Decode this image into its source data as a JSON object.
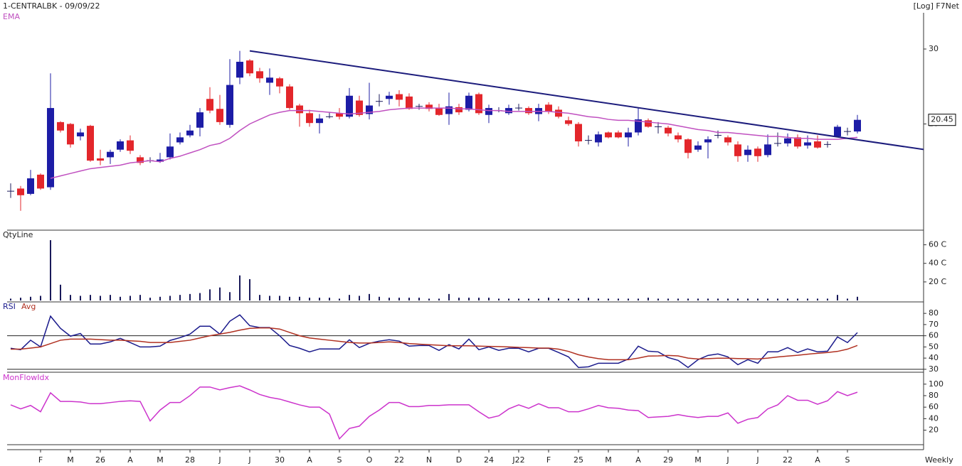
{
  "chart_data": [
    {
      "type": "candlestick",
      "title": "1-CENTRALBK - 09/09/22",
      "scale_label": "[Log] F7Net",
      "log": true,
      "ylim": [
        11.3,
        36.5
      ],
      "yticks": [
        20,
        30
      ],
      "up_color": "#1c1ca6",
      "down_color": "#e3262b",
      "open": [
        13.9,
        14.1,
        13.7,
        15.2,
        14.2,
        20.2,
        20.0,
        18.7,
        19.8,
        16.6,
        16.7,
        17.4,
        18.3,
        16.7,
        16.4,
        16.3,
        16.7,
        18.1,
        18.8,
        19.6,
        22.9,
        21.7,
        19.9,
        25.7,
        28.2,
        26.6,
        25.0,
        25.6,
        24.5,
        22.1,
        21.2,
        20.1,
        20.8,
        21.2,
        20.8,
        22.7,
        21.1,
        22.6,
        22.9,
        23.5,
        23.2,
        22.0,
        22.2,
        21.8,
        21.1,
        21.9,
        21.6,
        23.5,
        21.0,
        21.5,
        21.2,
        21.8,
        21.8,
        21.1,
        22.2,
        21.6,
        20.4,
        20.0,
        18.3,
        18.1,
        19.1,
        19.1,
        18.6,
        19.1,
        20.4,
        19.7,
        19.6,
        18.8,
        18.4,
        17.4,
        18.1,
        18.8,
        18.6,
        17.9,
        16.9,
        17.5,
        16.9,
        18.0,
        18.0,
        18.6,
        17.8,
        18.2,
        17.9,
        18.7,
        19.2,
        19.2
      ],
      "high": [
        14.5,
        14.3,
        15.6,
        15.3,
        26.3,
        20.3,
        20.1,
        19.5,
        19.9,
        17.4,
        17.4,
        18.4,
        18.8,
        16.9,
        16.7,
        17.1,
        19.0,
        19.1,
        19.9,
        21.8,
        24.4,
        23.4,
        28.4,
        29.7,
        28.4,
        27.1,
        27.0,
        25.8,
        24.8,
        22.3,
        21.6,
        21.1,
        21.3,
        21.8,
        24.3,
        23.3,
        25.0,
        23.5,
        23.8,
        24.0,
        23.6,
        22.3,
        22.5,
        22.3,
        23.7,
        22.3,
        23.7,
        23.7,
        22.2,
        21.9,
        22.2,
        22.3,
        22.0,
        22.3,
        22.5,
        22.0,
        20.8,
        20.2,
        18.8,
        19.2,
        19.2,
        19.3,
        19.6,
        21.8,
        20.6,
        20.2,
        19.8,
        19.1,
        18.5,
        18.2,
        18.7,
        19.3,
        18.8,
        18.2,
        17.8,
        17.7,
        18.9,
        19.1,
        19.0,
        18.9,
        18.8,
        18.8,
        18.2,
        19.9,
        19.6,
        21.0
      ],
      "low": [
        13.4,
        12.5,
        13.6,
        14.0,
        14.0,
        19.1,
        17.6,
        18.3,
        16.3,
        16.0,
        16.1,
        17.2,
        17.0,
        16.0,
        16.2,
        16.2,
        16.5,
        17.9,
        18.6,
        18.7,
        21.2,
        19.9,
        19.6,
        24.8,
        25.9,
        25.0,
        23.4,
        23.6,
        21.6,
        19.7,
        19.7,
        19.0,
        20.6,
        20.5,
        20.6,
        20.8,
        20.5,
        22.0,
        22.2,
        22.0,
        21.6,
        21.6,
        21.4,
        20.9,
        19.9,
        21.0,
        21.4,
        21.0,
        20.1,
        21.3,
        21.0,
        21.5,
        21.0,
        20.3,
        21.1,
        20.6,
        19.8,
        17.7,
        17.9,
        17.7,
        18.5,
        18.5,
        17.7,
        18.8,
        19.6,
        19.0,
        18.7,
        18.1,
        16.6,
        17.2,
        16.6,
        18.5,
        17.8,
        16.3,
        16.3,
        16.3,
        16.7,
        17.7,
        17.7,
        17.5,
        17.5,
        17.5,
        17.6,
        18.6,
        18.8,
        19.0
      ],
      "close": [
        13.9,
        13.6,
        14.9,
        14.1,
        21.8,
        19.3,
        17.9,
        19.1,
        16.4,
        16.4,
        17.2,
        18.2,
        17.3,
        16.2,
        16.4,
        16.5,
        17.7,
        18.6,
        19.3,
        21.3,
        21.5,
        20.2,
        24.7,
        28.0,
        26.3,
        25.6,
        25.7,
        24.5,
        21.8,
        21.2,
        20.1,
        20.6,
        20.8,
        20.8,
        23.3,
        21.0,
        22.1,
        22.6,
        23.3,
        22.8,
        21.7,
        22.0,
        21.7,
        21.0,
        22.0,
        21.3,
        23.3,
        21.2,
        21.8,
        21.5,
        21.8,
        21.8,
        21.2,
        21.8,
        21.4,
        20.8,
        20.0,
        18.2,
        18.3,
        18.9,
        18.6,
        18.6,
        19.1,
        20.5,
        19.7,
        19.7,
        19.0,
        18.4,
        17.1,
        17.8,
        18.4,
        18.8,
        18.1,
        16.8,
        17.4,
        16.8,
        17.9,
        18.0,
        18.5,
        17.7,
        18.1,
        17.6,
        17.9,
        19.7,
        19.2,
        20.45
      ],
      "series": [
        {
          "name": "EMA",
          "color": "#c050c0",
          "values": [
            null,
            null,
            null,
            null,
            14.9,
            15.1,
            15.3,
            15.5,
            15.7,
            15.8,
            15.9,
            16.0,
            16.2,
            16.3,
            16.4,
            16.3,
            16.6,
            16.8,
            17.1,
            17.4,
            17.8,
            18.0,
            18.5,
            19.3,
            20.0,
            20.5,
            21.0,
            21.3,
            21.5,
            21.5,
            21.5,
            21.4,
            21.3,
            21.2,
            21.1,
            21.2,
            21.3,
            21.4,
            21.6,
            21.7,
            21.8,
            21.8,
            21.8,
            21.8,
            21.8,
            21.7,
            21.7,
            21.6,
            21.5,
            21.5,
            21.4,
            21.4,
            21.4,
            21.4,
            21.4,
            21.3,
            21.2,
            21.0,
            20.8,
            20.7,
            20.5,
            20.4,
            20.4,
            20.3,
            20.2,
            20.1,
            20.0,
            19.8,
            19.6,
            19.4,
            19.3,
            19.1,
            19.1,
            19.0,
            18.9,
            18.8,
            18.7,
            18.7,
            18.6,
            18.5,
            18.5,
            18.4,
            18.4,
            18.4,
            18.5,
            18.6
          ]
        }
      ],
      "trendline": {
        "x": [
          24,
          91.8
        ],
        "y": [
          29.7,
          17.4
        ],
        "color": "#1c1c7c"
      },
      "last_value": 20.45
    },
    {
      "type": "bar",
      "title": "QtyLine",
      "color": "#1a1a5a",
      "ylim": [
        0,
        75
      ],
      "yticks": [
        {
          "value": 20,
          "label": "20 C"
        },
        {
          "value": 40,
          "label": "40 C"
        },
        {
          "value": 60,
          "label": "60 C"
        }
      ],
      "values": [
        2,
        3,
        4,
        5,
        65,
        17,
        6,
        5,
        6,
        5,
        6,
        4,
        5,
        6,
        3,
        4,
        5,
        6,
        7,
        8,
        12,
        14,
        9,
        27,
        23,
        6,
        5,
        5,
        4,
        4,
        3,
        3,
        3,
        2,
        6,
        5,
        7,
        4,
        3,
        3,
        3,
        3,
        2,
        2,
        7,
        3,
        3,
        3,
        3,
        2,
        2,
        2,
        2,
        2,
        3,
        2,
        2,
        2,
        3,
        2,
        2,
        2,
        2,
        2,
        3,
        2,
        2,
        2,
        2,
        2,
        2,
        2,
        2,
        2,
        2,
        2,
        2,
        2,
        2,
        2,
        2,
        2,
        2,
        6,
        2,
        4
      ]
    },
    {
      "type": "line",
      "ylim": [
        28,
        89
      ],
      "yticks": [
        30,
        40,
        50,
        60,
        70,
        80
      ],
      "levels": [
        60,
        30
      ],
      "series": [
        {
          "name": "RSI",
          "color": "#1a1a8c",
          "values": [
            48.8,
            47.5,
            56,
            50,
            77.5,
            66.6,
            59.6,
            62,
            52.6,
            52.6,
            54.5,
            57.7,
            53.9,
            50,
            50,
            50.7,
            55.8,
            58.3,
            61.5,
            68.5,
            68.5,
            61.5,
            73,
            78.7,
            69,
            67.3,
            67.3,
            60,
            51.3,
            48.8,
            45.6,
            48.2,
            48.2,
            48.2,
            56.4,
            49.4,
            53.2,
            55.2,
            56.4,
            55.2,
            50.7,
            51.3,
            51.3,
            46.9,
            52,
            48.2,
            57,
            47.5,
            50,
            46.9,
            48.8,
            48.8,
            45.6,
            48.8,
            48.8,
            45,
            41.1,
            31.6,
            32.2,
            35.4,
            35.4,
            35.4,
            39.2,
            50.7,
            46.2,
            45.6,
            40.5,
            38,
            31.6,
            38.6,
            42.4,
            43.7,
            41.1,
            34.1,
            38.6,
            35.4,
            45.6,
            45.6,
            49.4,
            45,
            48.2,
            45.6,
            46.2,
            59,
            53.9,
            62.8
          ]
        },
        {
          "name": "Avg",
          "color": "#b03020",
          "values": [
            48,
            48,
            49,
            50,
            53,
            56,
            57,
            57,
            57,
            56.5,
            56,
            56,
            55.5,
            55,
            54,
            54,
            54,
            55,
            56,
            58,
            60,
            61.5,
            63,
            65,
            66.6,
            67,
            67,
            66,
            63,
            60,
            58,
            57,
            56,
            55,
            54,
            53.5,
            53.5,
            54,
            54.5,
            54,
            53,
            52.5,
            52,
            51.5,
            51,
            51,
            51,
            50.7,
            50.5,
            50.3,
            50,
            49.6,
            49.4,
            49,
            49,
            48,
            46,
            43,
            41,
            39.5,
            38.6,
            38.6,
            38.6,
            40,
            41.8,
            42,
            42.4,
            42,
            40,
            39.2,
            39.5,
            39.9,
            39.9,
            39.6,
            39.4,
            39.2,
            40,
            41,
            41.8,
            42.5,
            43.5,
            44.3,
            45,
            46,
            48,
            51.3
          ]
        }
      ]
    },
    {
      "type": "line",
      "ylim": [
        -4,
        117
      ],
      "yticks": [
        20,
        40,
        60,
        80,
        100
      ],
      "xlabel": "Weekly",
      "series": [
        {
          "name": "MonFlowIdx",
          "color": "#cc33cc",
          "values": [
            64,
            57,
            63,
            52,
            85,
            70,
            70,
            69,
            66,
            66,
            68,
            70,
            71,
            70,
            36,
            55,
            68,
            68,
            80,
            95,
            95,
            90,
            94,
            97,
            90,
            82,
            77,
            74,
            69,
            64,
            60,
            60,
            48,
            5,
            23,
            27,
            44,
            55,
            68,
            68,
            61,
            61,
            63,
            63,
            64,
            64,
            64,
            52,
            41,
            45,
            57,
            64,
            58,
            66,
            59,
            59,
            52,
            52,
            57,
            63,
            59,
            58,
            55,
            54,
            42,
            43,
            44,
            47,
            44,
            42,
            44,
            44,
            50,
            32,
            39,
            42,
            57,
            64,
            80,
            72,
            72,
            65,
            71,
            87,
            80,
            86
          ]
        }
      ],
      "categories": [
        null,
        null,
        null,
        "F",
        null,
        null,
        "M",
        null,
        null,
        "26",
        null,
        null,
        "A",
        null,
        null,
        "M",
        null,
        null,
        "28",
        null,
        null,
        "J",
        null,
        null,
        "J",
        null,
        null,
        "30",
        null,
        null,
        "A",
        null,
        null,
        "S",
        null,
        null,
        "O",
        null,
        null,
        "22",
        null,
        null,
        "N",
        null,
        null,
        "D",
        null,
        null,
        "24",
        null,
        null,
        "J22",
        null,
        null,
        "F",
        null,
        null,
        "25",
        null,
        null,
        "M",
        null,
        null,
        "A",
        null,
        null,
        "29",
        null,
        null,
        "M",
        null,
        null,
        "J",
        null,
        null,
        "J",
        null,
        null,
        "22",
        null,
        null,
        "A",
        null,
        null,
        "S",
        null
      ]
    }
  ]
}
